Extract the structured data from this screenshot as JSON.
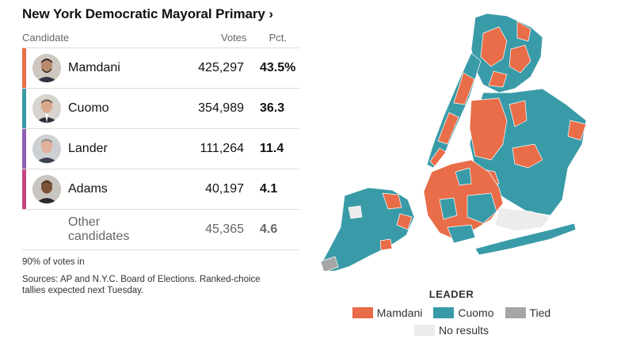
{
  "title": "New York Democratic Mayoral Primary ›",
  "table_header": {
    "candidate": "Candidate",
    "votes": "Votes",
    "pct": "Pct."
  },
  "candidates": [
    {
      "name": "Mamdani",
      "votes": "425,297",
      "pct": "43.5%",
      "color": "#e86d48"
    },
    {
      "name": "Cuomo",
      "votes": "354,989",
      "pct": "36.3",
      "color": "#3a9ba8"
    },
    {
      "name": "Lander",
      "votes": "111,264",
      "pct": "11.4",
      "color": "#8e5fb2"
    },
    {
      "name": "Adams",
      "votes": "40,197",
      "pct": "4.1",
      "color": "#c6457f"
    }
  ],
  "other": {
    "name": "Other candidates",
    "votes": "45,365",
    "pct": "4.6"
  },
  "reporting": "90% of votes in",
  "sources": "Sources: AP and N.Y.C. Board of Elections. Ranked-choice tallies expected next Tuesday.",
  "legend": {
    "title": "LEADER",
    "items": [
      {
        "label": "Mamdani",
        "color": "#e86d48"
      },
      {
        "label": "Cuomo",
        "color": "#3a9ba8"
      },
      {
        "label": "Tied",
        "color": "#a6a6a6"
      }
    ],
    "no_results": {
      "label": "No results",
      "color": "#ececec"
    }
  }
}
